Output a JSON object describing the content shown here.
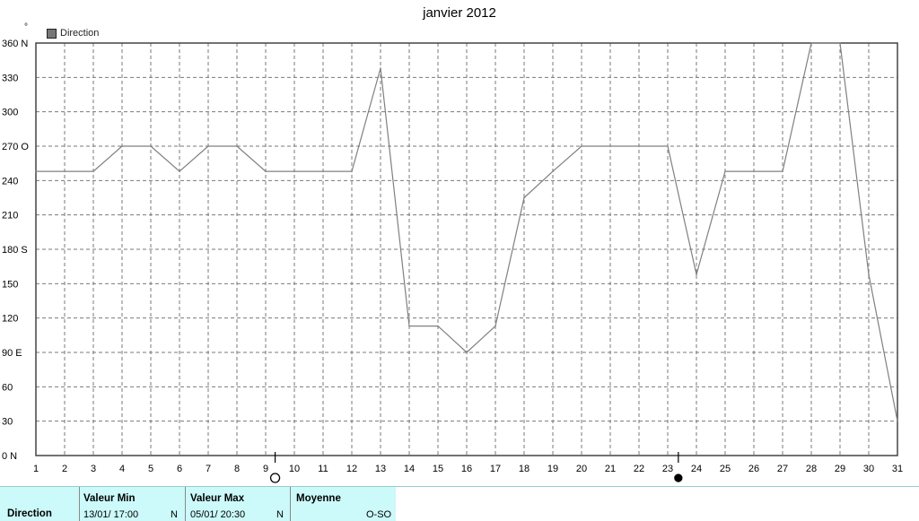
{
  "chart_data": {
    "type": "line",
    "title": "janvier 2012",
    "series": [
      {
        "name": "Direction",
        "values": [
          248,
          248,
          248,
          270,
          270,
          248,
          270,
          270,
          248,
          248,
          248,
          248,
          338,
          113,
          113,
          90,
          113,
          225,
          248,
          270,
          270,
          270,
          270,
          158,
          248,
          248,
          248,
          360,
          360,
          158,
          30
        ]
      }
    ],
    "x": [
      1,
      2,
      3,
      4,
      5,
      6,
      7,
      8,
      9,
      10,
      11,
      12,
      13,
      14,
      15,
      16,
      17,
      18,
      19,
      20,
      21,
      22,
      23,
      24,
      25,
      26,
      27,
      28,
      29,
      30,
      31
    ],
    "x_tick_labels": [
      "1",
      "2",
      "3",
      "4",
      "5",
      "6",
      "7",
      "8",
      "9",
      "10",
      "11",
      "12",
      "13",
      "14",
      "15",
      "16",
      "17",
      "18",
      "19",
      "20",
      "21",
      "22",
      "23",
      "24",
      "25",
      "26",
      "27",
      "28",
      "29",
      "30",
      "31"
    ],
    "y_tick_labels": [
      {
        "value": 0,
        "label": "0 N"
      },
      {
        "value": 30,
        "label": "30"
      },
      {
        "value": 60,
        "label": "60"
      },
      {
        "value": 90,
        "label": "90 E"
      },
      {
        "value": 120,
        "label": "120"
      },
      {
        "value": 150,
        "label": "150"
      },
      {
        "value": 180,
        "label": "180 S"
      },
      {
        "value": 210,
        "label": "210"
      },
      {
        "value": 240,
        "label": "240"
      },
      {
        "value": 270,
        "label": "270 O"
      },
      {
        "value": 300,
        "label": "300"
      },
      {
        "value": 330,
        "label": "330"
      },
      {
        "value": 360,
        "label": "360 N"
      }
    ],
    "ylim": [
      0,
      360
    ],
    "xlim": [
      1,
      31
    ],
    "y_unit": "°",
    "grid": true,
    "legend": "top-left",
    "moon_phases": [
      {
        "day": 9.33,
        "phase": "full",
        "symbol": "○"
      },
      {
        "day": 23.37,
        "phase": "new",
        "symbol": "●"
      }
    ],
    "line_color": "#808080"
  },
  "footer": {
    "row_label": "Direction",
    "min_header": "Valeur Min",
    "min_date": "13/01/  17:00",
    "min_value": "N",
    "max_header": "Valeur Max",
    "max_date": "05/01/  20:30",
    "max_value": "N",
    "avg_header": "Moyenne",
    "avg_value": "O-SO"
  }
}
